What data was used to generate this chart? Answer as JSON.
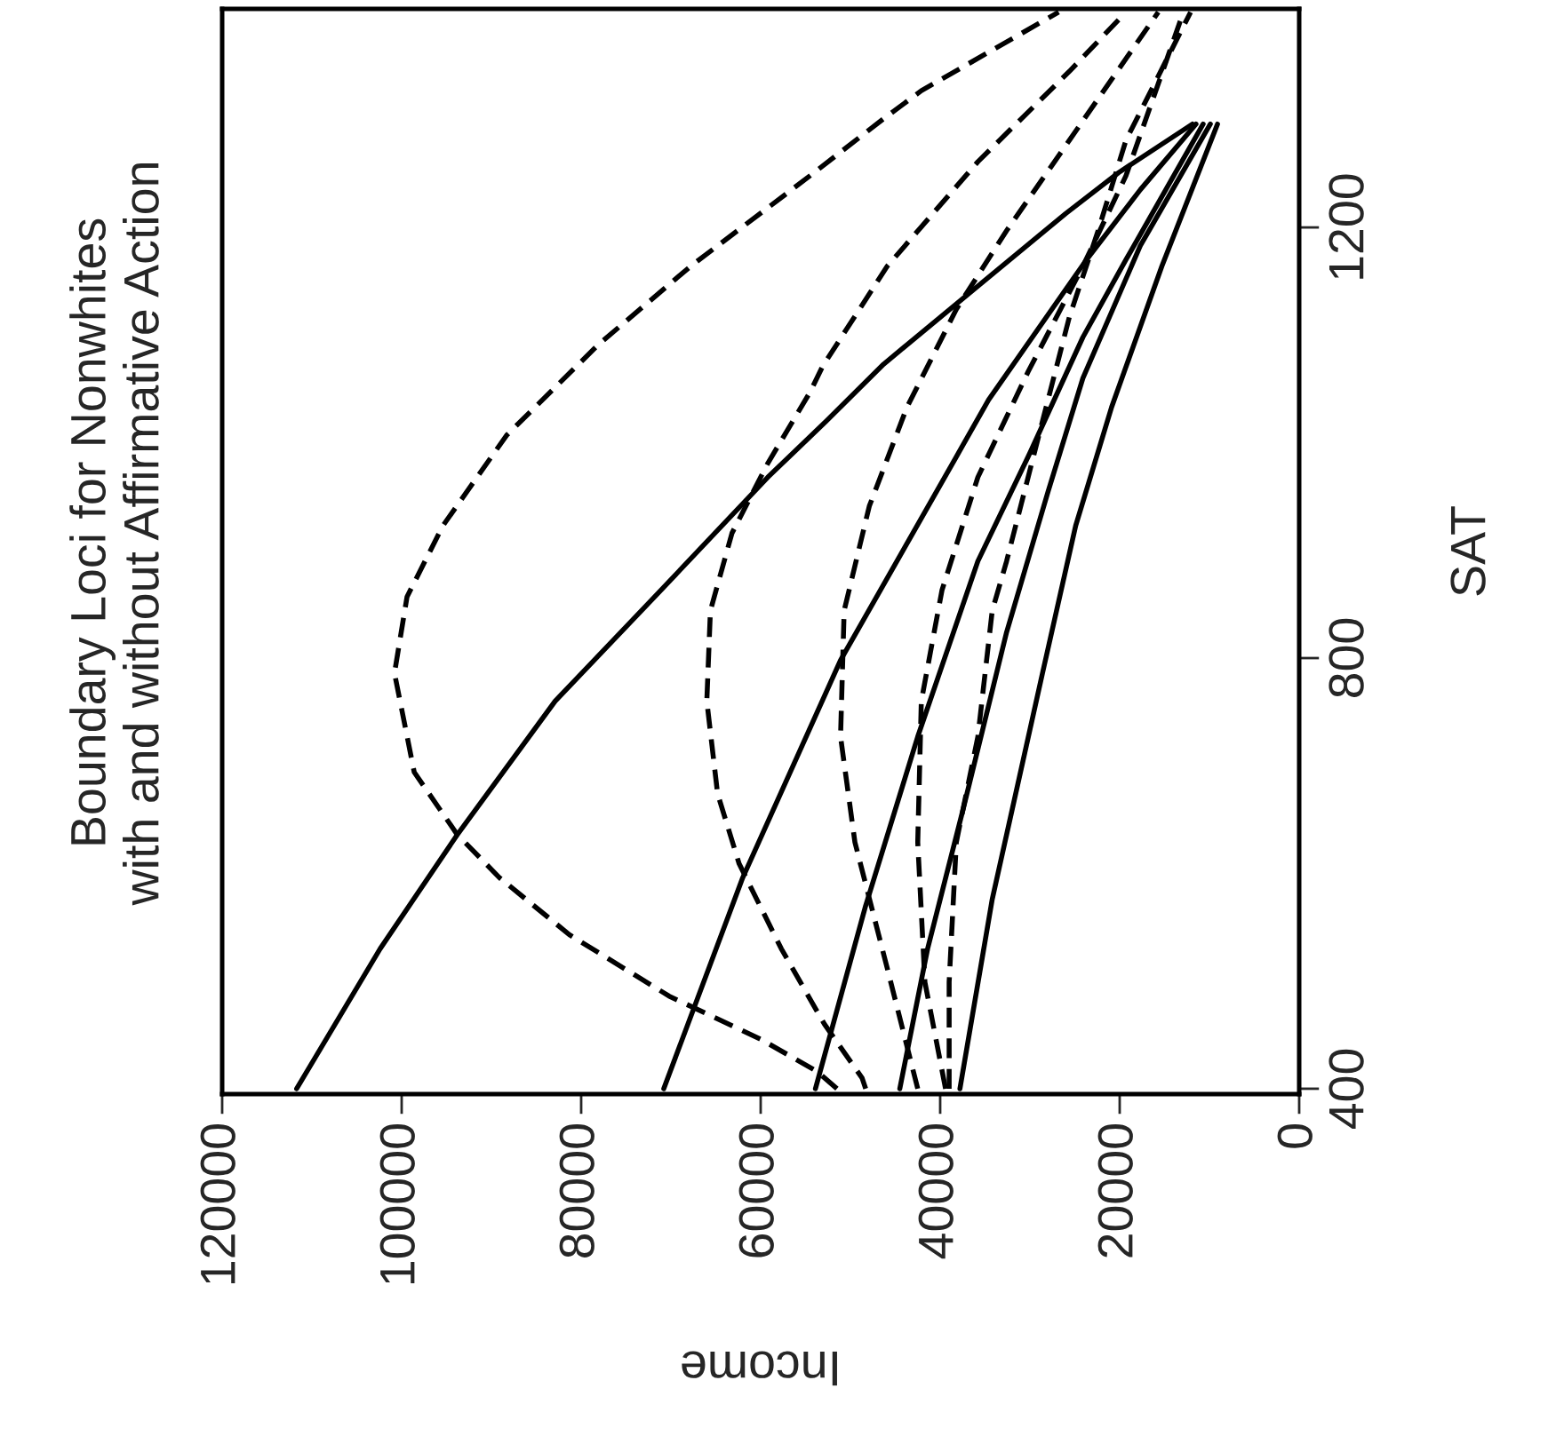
{
  "chart_data": {
    "type": "line",
    "title": "Boundary Loci for Nonwhites\nwith and without Affirmative Action",
    "xlabel": "Income",
    "ylabel": "SAT",
    "xlim": [
      120000,
      0
    ],
    "xticks": [
      0,
      20000,
      40000,
      60000,
      80000,
      100000,
      120000
    ],
    "ylim": [
      395,
      1403
    ],
    "yticks": [
      400,
      800,
      1200
    ],
    "series": [
      {
        "color": "#000000",
        "line_style": "solid",
        "x": [
          111700,
          102400,
          93800,
          82900,
          71800,
          59200,
          52700,
          46300,
          36600,
          26000,
          20100,
          11900
        ],
        "values": [
          400,
          530,
          636,
          760,
          857,
          968,
          1020,
          1073,
          1140,
          1213,
          1251,
          1296
        ]
      },
      {
        "color": "#000000",
        "line_style": "solid",
        "x": [
          70800,
          62000,
          51100,
          38200,
          34600,
          23700,
          17700,
          11500
        ],
        "values": [
          400,
          596,
          798,
          987,
          1040,
          1170,
          1235,
          1296
        ]
      },
      {
        "color": "#000000",
        "line_style": "solid",
        "x": [
          53900,
          48300,
          42500,
          35800,
          30200,
          24100,
          19300,
          10700
        ],
        "values": [
          400,
          570,
          727,
          890,
          987,
          1098,
          1170,
          1296
        ]
      },
      {
        "color": "#000000",
        "line_style": "solid",
        "x": [
          44500,
          41400,
          37400,
          32600,
          28000,
          24100,
          17700,
          9900
        ],
        "values": [
          400,
          530,
          661,
          824,
          954,
          1060,
          1183,
          1296
        ]
      },
      {
        "color": "#000000",
        "line_style": "solid",
        "x": [
          37800,
          34200,
          28600,
          24900,
          20900,
          15300,
          9100
        ],
        "values": [
          400,
          576,
          786,
          923,
          1033,
          1164,
          1296
        ]
      },
      {
        "color": "#000000",
        "line_style": "dashed",
        "x": [
          51500,
          53700,
          60000,
          70200,
          81300,
          89100,
          93800,
          98600,
          100800,
          99400,
          95400,
          88300,
          78100,
          67800,
          54500,
          46300,
          42100,
          26800
        ],
        "values": [
          400,
          416,
          446,
          486,
          543,
          596,
          636,
          694,
          786,
          857,
          923,
          1007,
          1091,
          1164,
          1248,
          1301,
          1327,
          1400
        ]
      },
      {
        "color": "#000000",
        "line_style": "dashed",
        "x": [
          48300,
          48700,
          52900,
          57700,
          62400,
          64800,
          66000,
          65600,
          63200,
          59200,
          54500,
          53100,
          45900,
          35800,
          25600,
          19300
        ],
        "values": [
          400,
          410,
          460,
          530,
          609,
          674,
          760,
          844,
          916,
          981,
          1047,
          1071,
          1164,
          1261,
          1345,
          1400
        ]
      },
      {
        "color": "#000000",
        "line_style": "dashed",
        "x": [
          42500,
          45900,
          49500,
          51100,
          50700,
          47900,
          43700,
          38200,
          32600,
          25600,
          15700
        ],
        "values": [
          400,
          512,
          629,
          727,
          844,
          941,
          1033,
          1124,
          1197,
          1281,
          1400
        ]
      },
      {
        "color": "#000000",
        "line_style": "dashed",
        "x": [
          39400,
          41700,
          42500,
          42100,
          39800,
          35800,
          30200,
          24100,
          19300,
          12900
        ],
        "values": [
          400,
          499,
          629,
          760,
          863,
          968,
          1066,
          1164,
          1248,
          1400
        ]
      },
      {
        "color": "#000000",
        "line_style": "dashed",
        "x": [
          39000,
          39000,
          38200,
          35800,
          34200,
          32600,
          28600,
          25600,
          22400,
          19300,
          12100
        ],
        "values": [
          400,
          499,
          629,
          727,
          844,
          890,
          1020,
          1117,
          1197,
          1281,
          1400
        ]
      }
    ]
  }
}
